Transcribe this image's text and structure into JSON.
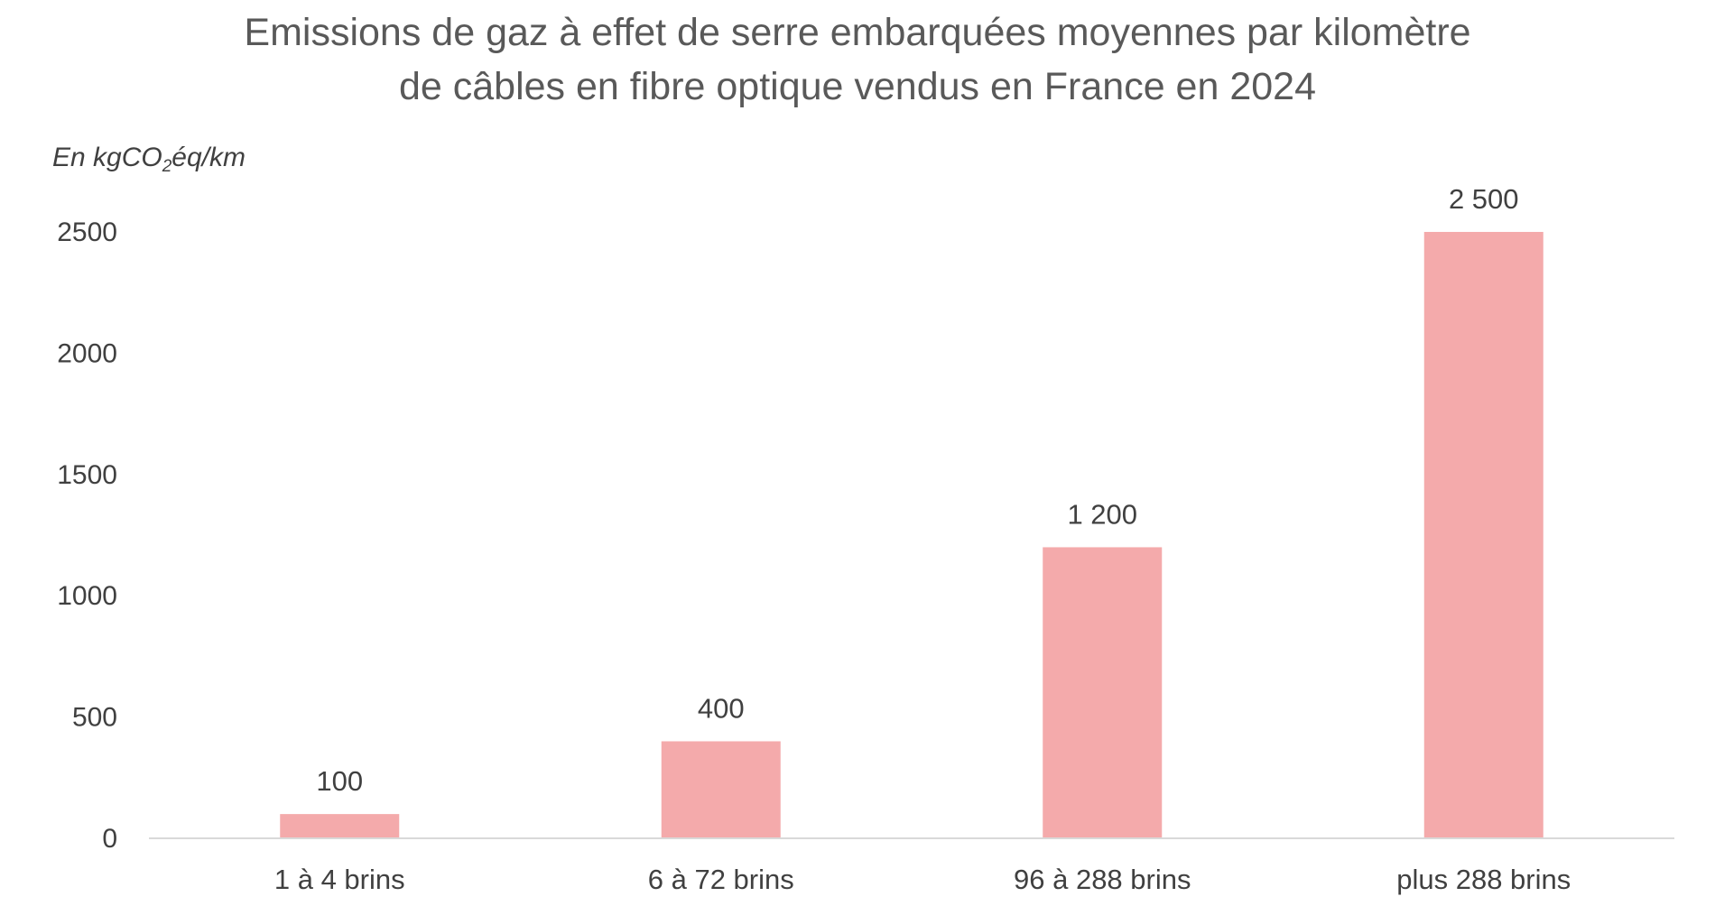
{
  "chart_data": {
    "type": "bar",
    "title_line1": "Emissions de gaz à effet de serre embarquées moyennes par kilomètre",
    "title_line2": "de câbles en fibre optique vendus en France en 2024",
    "unit_prefix": "En kgCO",
    "unit_subscript": "2",
    "unit_suffix": "éq/km",
    "categories": [
      "1 à 4 brins",
      "6 à 72 brins",
      "96 à 288 brins",
      "plus 288 brins"
    ],
    "values": [
      100,
      400,
      1200,
      2500
    ],
    "data_labels": [
      "100",
      "400",
      "1 200",
      "2 500"
    ],
    "y_ticks": [
      0,
      500,
      1000,
      1500,
      2000,
      2500
    ],
    "ylim": [
      0,
      2500
    ],
    "grid": false,
    "legend": "none",
    "bar_color": "#f4aaab",
    "axis_color": "#d9d9d9",
    "text_color": "#404040"
  }
}
